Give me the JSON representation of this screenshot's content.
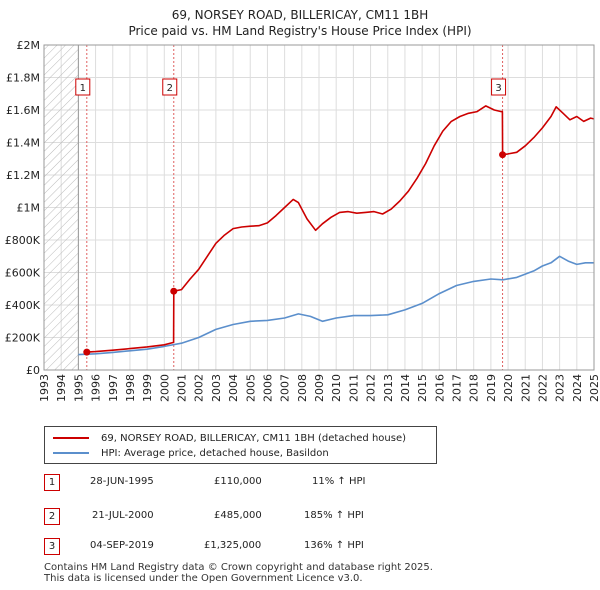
{
  "chart_data": {
    "type": "line",
    "title": "69, NORSEY ROAD, BILLERICAY, CM11 1BH",
    "subtitle": "Price paid vs. HM Land Registry's House Price Index (HPI)",
    "xlabel": "",
    "ylabel": "",
    "xlim": [
      1993,
      2025
    ],
    "ylim": [
      0,
      2000000
    ],
    "y_ticks": [
      0,
      200000,
      400000,
      600000,
      800000,
      1000000,
      1200000,
      1400000,
      1600000,
      1800000,
      2000000
    ],
    "y_tick_labels": [
      "£0",
      "£200K",
      "£400K",
      "£600K",
      "£800K",
      "£1M",
      "£1.2M",
      "£1.4M",
      "£1.6M",
      "£1.8M",
      "£2M"
    ],
    "x_ticks": [
      1993,
      1994,
      1995,
      1996,
      1997,
      1998,
      1999,
      2000,
      2001,
      2002,
      2003,
      2004,
      2005,
      2006,
      2007,
      2008,
      2009,
      2010,
      2011,
      2012,
      2013,
      2014,
      2015,
      2016,
      2017,
      2018,
      2019,
      2020,
      2021,
      2022,
      2023,
      2024,
      2025
    ],
    "x_tick_labels": [
      "1993",
      "1994",
      "1995",
      "1996",
      "1997",
      "1998",
      "1999",
      "2000",
      "2001",
      "2002",
      "2003",
      "2004",
      "2005",
      "2006",
      "2007",
      "2008",
      "2009",
      "2010",
      "2011",
      "2012",
      "2013",
      "2014",
      "2015",
      "2016",
      "2017",
      "2018",
      "2019",
      "2020",
      "2021",
      "2022",
      "2023",
      "2024",
      "2025"
    ],
    "grid": true,
    "series": [
      {
        "name": "69, NORSEY ROAD, BILLERICAY, CM11 1BH (detached house)",
        "color": "#cc0000",
        "x": [
          1995.49,
          1996.0,
          1997.0,
          1998.0,
          1999.0,
          2000.0,
          2000.54,
          2000.55,
          2001.0,
          2001.5,
          2002.0,
          2002.5,
          2003.0,
          2003.5,
          2004.0,
          2004.5,
          2005.0,
          2005.5,
          2006.0,
          2006.5,
          2007.0,
          2007.5,
          2007.8,
          2008.3,
          2008.8,
          2009.2,
          2009.7,
          2010.2,
          2010.7,
          2011.2,
          2011.7,
          2012.2,
          2012.7,
          2013.2,
          2013.7,
          2014.2,
          2014.7,
          2015.2,
          2015.7,
          2016.2,
          2016.7,
          2017.2,
          2017.7,
          2018.2,
          2018.7,
          2019.2,
          2019.6,
          2019.67,
          2019.68,
          2020.0,
          2020.5,
          2021.0,
          2021.5,
          2022.0,
          2022.5,
          2022.8,
          2023.2,
          2023.6,
          2024.0,
          2024.4,
          2024.8,
          2025.0
        ],
        "values": [
          110000,
          113000,
          122000,
          132000,
          142000,
          155000,
          170000,
          485000,
          495000,
          560000,
          620000,
          700000,
          780000,
          830000,
          870000,
          880000,
          885000,
          888000,
          905000,
          950000,
          1000000,
          1050000,
          1030000,
          930000,
          860000,
          900000,
          940000,
          970000,
          975000,
          965000,
          970000,
          975000,
          960000,
          990000,
          1040000,
          1100000,
          1180000,
          1270000,
          1380000,
          1470000,
          1530000,
          1560000,
          1580000,
          1590000,
          1625000,
          1600000,
          1590000,
          1590000,
          1325000,
          1330000,
          1340000,
          1380000,
          1430000,
          1490000,
          1560000,
          1620000,
          1580000,
          1540000,
          1560000,
          1530000,
          1550000,
          1545000
        ]
      },
      {
        "name": "HPI: Average price, detached house, Basildon",
        "color": "#5b8fcc",
        "x": [
          1995.0,
          1996.0,
          1997.0,
          1998.0,
          1999.0,
          2000.0,
          2001.0,
          2002.0,
          2003.0,
          2004.0,
          2005.0,
          2006.0,
          2007.0,
          2007.8,
          2008.5,
          2009.2,
          2010.0,
          2011.0,
          2012.0,
          2013.0,
          2014.0,
          2015.0,
          2016.0,
          2017.0,
          2018.0,
          2019.0,
          2019.7,
          2020.5,
          2021.0,
          2021.5,
          2022.0,
          2022.5,
          2023.0,
          2023.5,
          2024.0,
          2024.5,
          2025.0
        ],
        "values": [
          95000,
          100000,
          108000,
          118000,
          128000,
          145000,
          165000,
          200000,
          250000,
          280000,
          300000,
          305000,
          320000,
          345000,
          330000,
          300000,
          320000,
          335000,
          335000,
          340000,
          370000,
          410000,
          470000,
          520000,
          545000,
          560000,
          555000,
          570000,
          590000,
          610000,
          640000,
          660000,
          700000,
          670000,
          650000,
          660000,
          660000
        ]
      }
    ],
    "annotations": [
      {
        "label": "1",
        "x": 1995.49,
        "value": 110000
      },
      {
        "label": "2",
        "x": 2000.55,
        "value": 485000
      },
      {
        "label": "3",
        "x": 2019.68,
        "value": 1325000
      }
    ],
    "hatched_region": [
      1993,
      1995.0
    ]
  },
  "legend": {
    "property_label": "69, NORSEY ROAD, BILLERICAY, CM11 1BH (detached house)",
    "hpi_label": "HPI: Average price, detached house, Basildon"
  },
  "sales": [
    {
      "num": "1",
      "date": "28-JUN-1995",
      "price": "£110,000",
      "hpi": "11% ↑ HPI"
    },
    {
      "num": "2",
      "date": "21-JUL-2000",
      "price": "£485,000",
      "hpi": "185% ↑ HPI"
    },
    {
      "num": "3",
      "date": "04-SEP-2019",
      "price": "£1,325,000",
      "hpi": "136% ↑ HPI"
    }
  ],
  "footer": {
    "line1": "Contains HM Land Registry data © Crown copyright and database right 2025.",
    "line2": "This data is licensed under the Open Government Licence v3.0."
  },
  "colors": {
    "property": "#cc0000",
    "hpi": "#5b8fcc",
    "grid": "#dddddd"
  }
}
